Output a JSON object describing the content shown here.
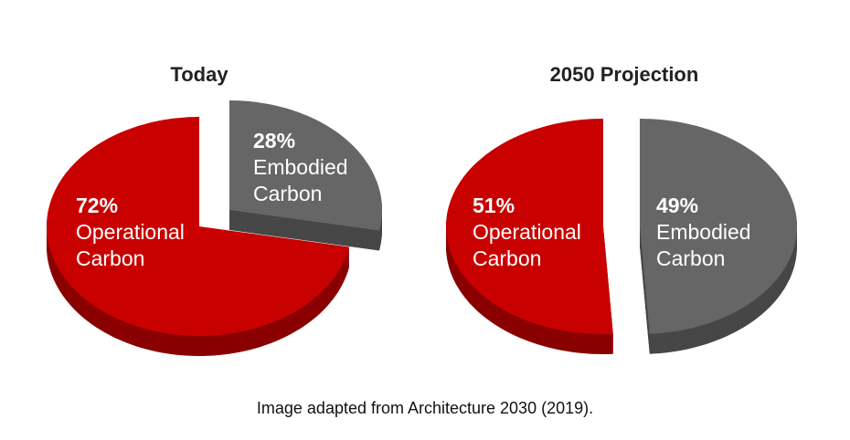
{
  "chart_data": [
    {
      "type": "pie",
      "title": "Today",
      "slices": [
        {
          "label": "Operational Carbon",
          "pct_label": "72%",
          "line1": "Operational",
          "line2": "Carbon",
          "value": 72,
          "color": "#c80000",
          "side_color": "#8a0000"
        },
        {
          "label": "Embodied Carbon",
          "pct_label": "28%",
          "line1": "Embodied",
          "line2": "Carbon",
          "value": 28,
          "color": "#666666",
          "side_color": "#474747",
          "exploded": true
        }
      ],
      "style": "3d-exploded"
    },
    {
      "type": "pie",
      "title": "2050 Projection",
      "slices": [
        {
          "label": "Operational Carbon",
          "pct_label": "51%",
          "line1": "Operational",
          "line2": "Carbon",
          "value": 51,
          "color": "#c80000",
          "side_color": "#8a0000"
        },
        {
          "label": "Embodied Carbon",
          "pct_label": "49%",
          "line1": "Embodied",
          "line2": "Carbon",
          "value": 49,
          "color": "#666666",
          "side_color": "#474747",
          "exploded": true
        }
      ],
      "style": "3d-exploded"
    }
  ],
  "caption": "Image adapted from Architecture 2030 (2019)."
}
